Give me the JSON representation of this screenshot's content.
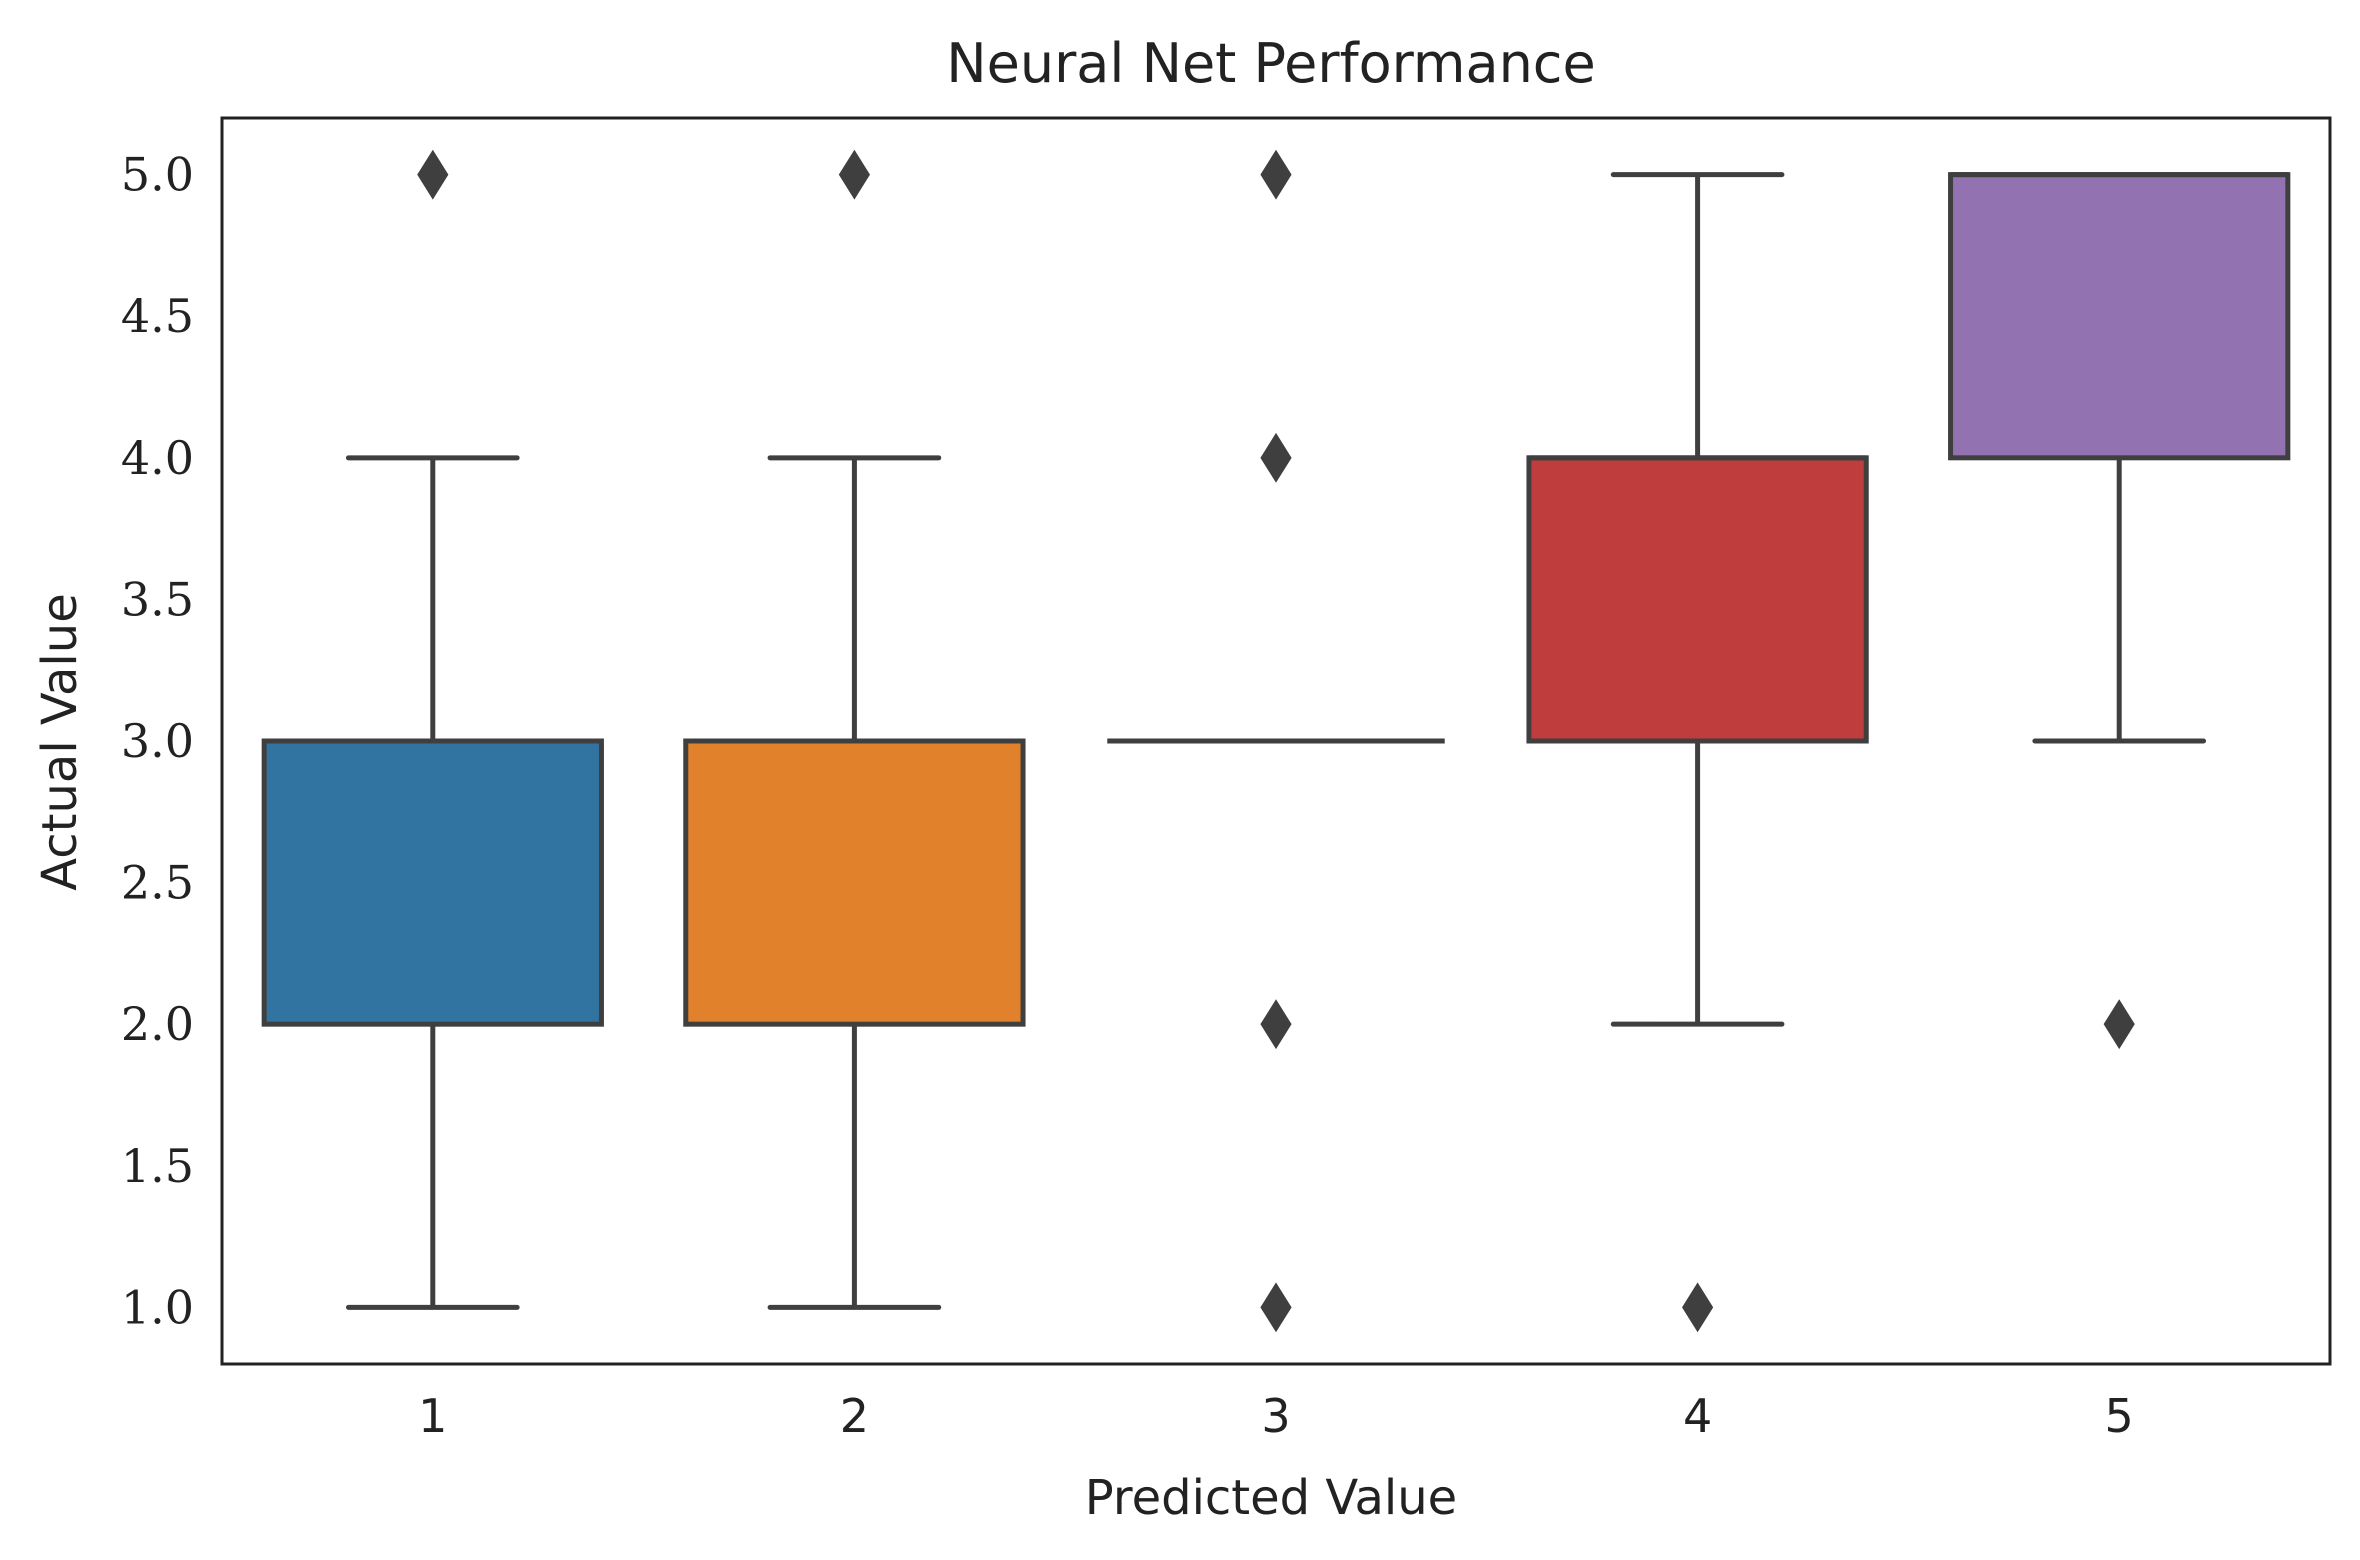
{
  "chart_data": {
    "type": "box",
    "title": "Neural Net Performance",
    "xlabel": "Predicted Value",
    "ylabel": "Actual Value",
    "ylim": [
      0.8,
      5.2
    ],
    "y_ticks": [
      "1.0",
      "1.5",
      "2.0",
      "2.5",
      "3.0",
      "3.5",
      "4.0",
      "4.5",
      "5.0"
    ],
    "y_tick_values": [
      1.0,
      1.5,
      2.0,
      2.5,
      3.0,
      3.5,
      4.0,
      4.5,
      5.0
    ],
    "categories": [
      "1",
      "2",
      "3",
      "4",
      "5"
    ],
    "grid": false,
    "boxes": [
      {
        "category": "1",
        "whisker_low": 1.0,
        "q1": 2.0,
        "median": 3.0,
        "q3": 3.0,
        "whisker_high": 4.0,
        "outliers": [
          5.0
        ],
        "color": "#3274a1"
      },
      {
        "category": "2",
        "whisker_low": 1.0,
        "q1": 2.0,
        "median": 3.0,
        "q3": 3.0,
        "whisker_high": 4.0,
        "outliers": [
          5.0
        ],
        "color": "#e1812c"
      },
      {
        "category": "3",
        "whisker_low": 3.0,
        "q1": 3.0,
        "median": 3.0,
        "q3": 3.0,
        "whisker_high": 3.0,
        "outliers": [
          1.0,
          2.0,
          4.0,
          5.0
        ],
        "color": "#3a923a"
      },
      {
        "category": "4",
        "whisker_low": 2.0,
        "q1": 3.0,
        "median": 4.0,
        "q3": 4.0,
        "whisker_high": 5.0,
        "outliers": [
          1.0
        ],
        "color": "#c03d3e"
      },
      {
        "category": "5",
        "whisker_low": 3.0,
        "q1": 4.0,
        "median": 5.0,
        "q3": 5.0,
        "whisker_high": 5.0,
        "outliers": [
          2.0
        ],
        "color": "#9372b2"
      }
    ],
    "line_color": "#3f3f3f",
    "frame_color": "#222222"
  }
}
